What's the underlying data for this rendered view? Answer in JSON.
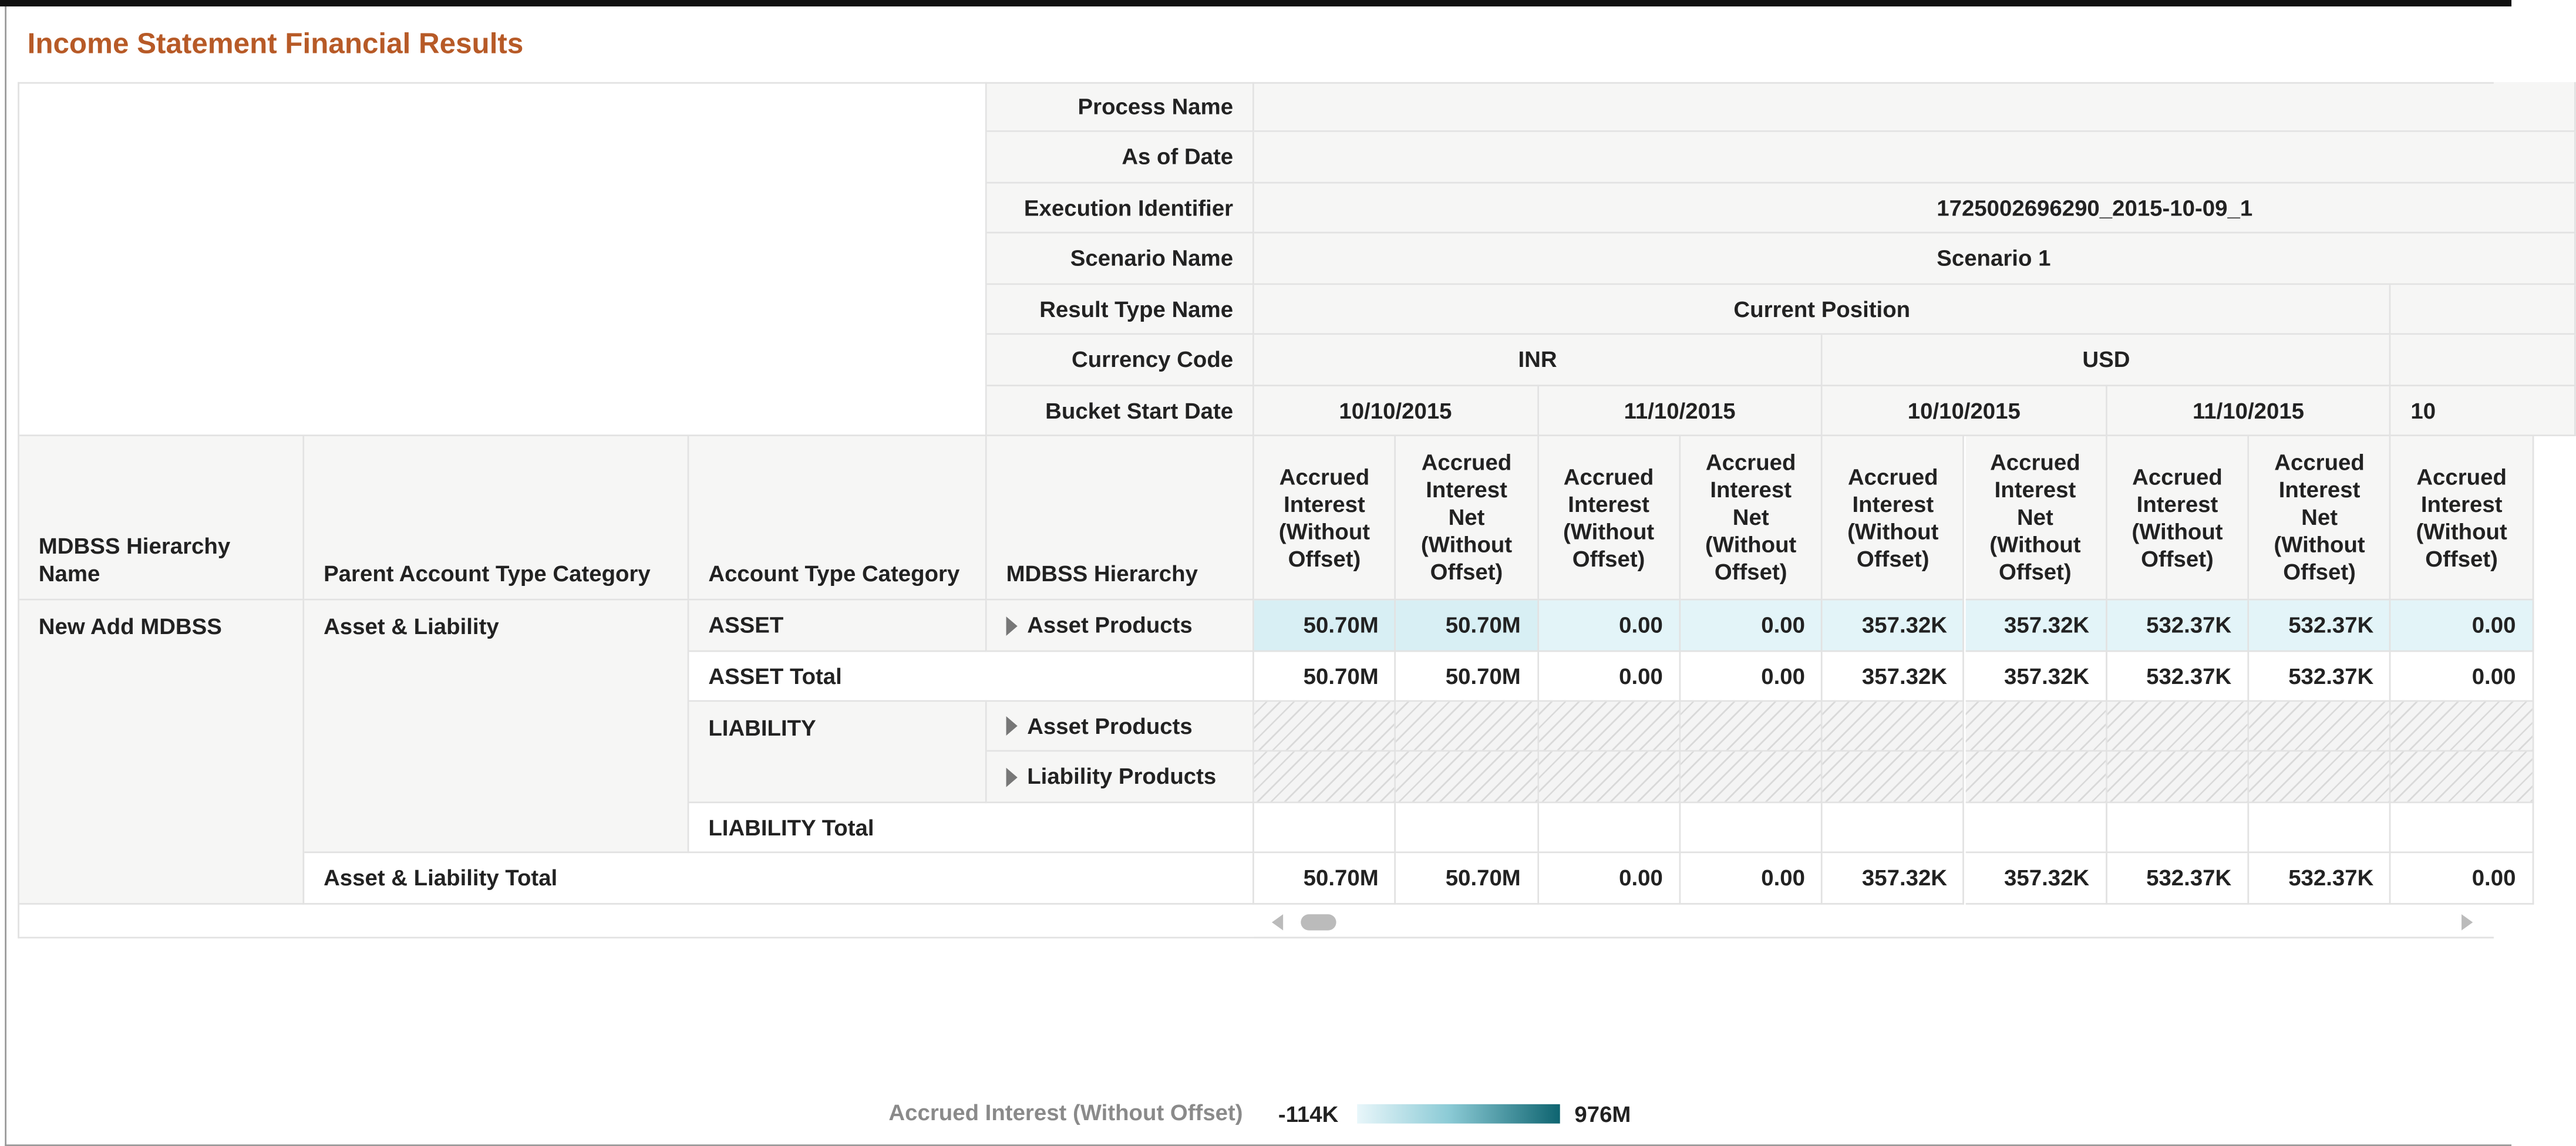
{
  "title": "Income Statement Financial Results",
  "page_filters": [
    {
      "label": "Process Name"
    },
    {
      "label": "As of Date"
    },
    {
      "label": "Execution Identifier",
      "value": "1725002696290_2015-10-09_1"
    },
    {
      "label": "Scenario Name",
      "value": "Scenario 1"
    }
  ],
  "result_type": {
    "label": "Result Type Name",
    "value": "Current Position"
  },
  "currency": {
    "label": "Currency Code",
    "groups": [
      "INR",
      "USD"
    ]
  },
  "bucket": {
    "label": "Bucket Start Date",
    "dates": [
      "10/10/2015",
      "11/10/2015",
      "10/10/2015",
      "11/10/2015",
      "10"
    ]
  },
  "measures": [
    "Accrued Interest (Without Offset)",
    "Accrued Interest Net (Without Offset)"
  ],
  "row_headers": [
    "MDBSS Hierarchy Name",
    "Parent Account Type Category",
    "Account Type Category",
    "MDBSS Hierarchy"
  ],
  "rows": [
    {
      "hierarchy_name": "New Add MDBSS",
      "parent_category": "Asset & Liability",
      "account_category": "ASSET",
      "mdbss_hierarchy": "Asset Products",
      "values": [
        "50.70M",
        "50.70M",
        "0.00",
        "0.00",
        "357.32K",
        "357.32K",
        "532.37K",
        "532.37K",
        "0.00"
      ]
    },
    {
      "account_category": "ASSET Total",
      "values": [
        "50.70M",
        "50.70M",
        "0.00",
        "0.00",
        "357.32K",
        "357.32K",
        "532.37K",
        "532.37K",
        "0.00"
      ]
    },
    {
      "account_category": "LIABILITY",
      "mdbss_hierarchy": "Asset Products"
    },
    {
      "mdbss_hierarchy": "Liability Products"
    },
    {
      "account_category": "LIABILITY Total"
    },
    {
      "parent_category": "Asset & Liability Total",
      "values": [
        "50.70M",
        "50.70M",
        "0.00",
        "0.00",
        "357.32K",
        "357.32K",
        "532.37K",
        "532.37K",
        "0.00"
      ]
    }
  ],
  "legend": {
    "label": "Accrued Interest (Without Offset)",
    "min": "-114K",
    "max": "976M"
  }
}
